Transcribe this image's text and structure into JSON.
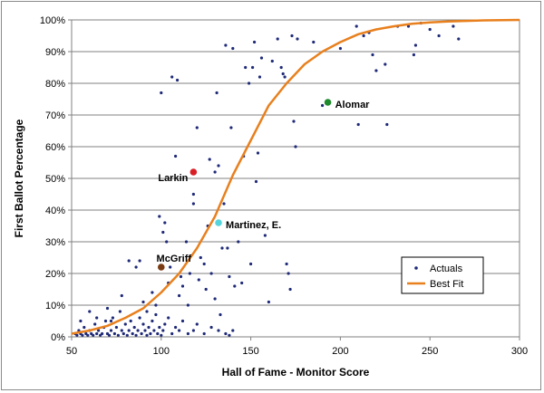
{
  "chart_data": {
    "type": "scatter",
    "xlabel": "Hall of Fame - Monitor Score",
    "ylabel": "First Ballot Percentage",
    "xlim": [
      50,
      300
    ],
    "ylim": [
      0,
      100
    ],
    "x_ticks": [
      50,
      100,
      150,
      200,
      250,
      300
    ],
    "y_ticks": [
      "0%",
      "10%",
      "20%",
      "30%",
      "40%",
      "50%",
      "60%",
      "70%",
      "80%",
      "90%",
      "100%"
    ],
    "grid": "horizontal",
    "legend_position": "bottom-right",
    "series": [
      {
        "name": "Actuals",
        "color": "#1f2a78",
        "points": [
          [
            52,
            1
          ],
          [
            53,
            0.5
          ],
          [
            54,
            2
          ],
          [
            55,
            1
          ],
          [
            56,
            0.5
          ],
          [
            57,
            3
          ],
          [
            58,
            1
          ],
          [
            59,
            0.5
          ],
          [
            60,
            2
          ],
          [
            61,
            1
          ],
          [
            62,
            0.5
          ],
          [
            63,
            4
          ],
          [
            64,
            1
          ],
          [
            65,
            2
          ],
          [
            66,
            0.5
          ],
          [
            67,
            1
          ],
          [
            68,
            3
          ],
          [
            69,
            5
          ],
          [
            70,
            1
          ],
          [
            71,
            0.5
          ],
          [
            72,
            2
          ],
          [
            73,
            6
          ],
          [
            74,
            1
          ],
          [
            75,
            3
          ],
          [
            76,
            0.5
          ],
          [
            77,
            8
          ],
          [
            78,
            2
          ],
          [
            79,
            1
          ],
          [
            80,
            4
          ],
          [
            81,
            0.5
          ],
          [
            82,
            2
          ],
          [
            83,
            5
          ],
          [
            84,
            1
          ],
          [
            85,
            3
          ],
          [
            86,
            0.5
          ],
          [
            87,
            2
          ],
          [
            88,
            6
          ],
          [
            89,
            1
          ],
          [
            90,
            4
          ],
          [
            91,
            2
          ],
          [
            92,
            0.5
          ],
          [
            93,
            3
          ],
          [
            94,
            1
          ],
          [
            95,
            5
          ],
          [
            96,
            2
          ],
          [
            97,
            7
          ],
          [
            98,
            1
          ],
          [
            99,
            3
          ],
          [
            100,
            0.5
          ],
          [
            101,
            2
          ],
          [
            102,
            4
          ],
          [
            104,
            6
          ],
          [
            106,
            1
          ],
          [
            108,
            3
          ],
          [
            110,
            2
          ],
          [
            112,
            5
          ],
          [
            115,
            1
          ],
          [
            118,
            2
          ],
          [
            120,
            4
          ],
          [
            124,
            1
          ],
          [
            128,
            3
          ],
          [
            132,
            2
          ],
          [
            136,
            1
          ],
          [
            138,
            0.5
          ],
          [
            140,
            2
          ],
          [
            55,
            5
          ],
          [
            60,
            8
          ],
          [
            64,
            6
          ],
          [
            70,
            9
          ],
          [
            72,
            5
          ],
          [
            78,
            13
          ],
          [
            82,
            24
          ],
          [
            86,
            22
          ],
          [
            88,
            24
          ],
          [
            90,
            11
          ],
          [
            92,
            8
          ],
          [
            95,
            14
          ],
          [
            97,
            10
          ],
          [
            99,
            38
          ],
          [
            100,
            77
          ],
          [
            101,
            33
          ],
          [
            102,
            36
          ],
          [
            103,
            30
          ],
          [
            104,
            17
          ],
          [
            105,
            22
          ],
          [
            106,
            82
          ],
          [
            108,
            57
          ],
          [
            109,
            81
          ],
          [
            110,
            13
          ],
          [
            111,
            19
          ],
          [
            112,
            16
          ],
          [
            114,
            30
          ],
          [
            115,
            10
          ],
          [
            116,
            20
          ],
          [
            118,
            45
          ],
          [
            118,
            42
          ],
          [
            120,
            66
          ],
          [
            121,
            18
          ],
          [
            122,
            25
          ],
          [
            124,
            23
          ],
          [
            125,
            15
          ],
          [
            126,
            35
          ],
          [
            127,
            56
          ],
          [
            128,
            20
          ],
          [
            130,
            52
          ],
          [
            130,
            12
          ],
          [
            131,
            77
          ],
          [
            132,
            54
          ],
          [
            133,
            7
          ],
          [
            134,
            28
          ],
          [
            135,
            42
          ],
          [
            136,
            92
          ],
          [
            137,
            28
          ],
          [
            138,
            19
          ],
          [
            139,
            66
          ],
          [
            140,
            91
          ],
          [
            141,
            16
          ],
          [
            143,
            30
          ],
          [
            145,
            17
          ],
          [
            146,
            57
          ],
          [
            147,
            85
          ],
          [
            149,
            80
          ],
          [
            150,
            23
          ],
          [
            151,
            85
          ],
          [
            152,
            93
          ],
          [
            153,
            49
          ],
          [
            154,
            58
          ],
          [
            155,
            82
          ],
          [
            156,
            88
          ],
          [
            158,
            32
          ],
          [
            160,
            11
          ],
          [
            162,
            87
          ],
          [
            165,
            94
          ],
          [
            167,
            85
          ],
          [
            168,
            83
          ],
          [
            169,
            82
          ],
          [
            170,
            23
          ],
          [
            171,
            20
          ],
          [
            172,
            15
          ],
          [
            173,
            95
          ],
          [
            174,
            68
          ],
          [
            175,
            60
          ],
          [
            176,
            94
          ],
          [
            185,
            93
          ],
          [
            190,
            73
          ],
          [
            200,
            91
          ],
          [
            209,
            98
          ],
          [
            210,
            67
          ],
          [
            213,
            95
          ],
          [
            216,
            96
          ],
          [
            218,
            89
          ],
          [
            220,
            84
          ],
          [
            225,
            86
          ],
          [
            226,
            67
          ],
          [
            232,
            98
          ],
          [
            238,
            98
          ],
          [
            241,
            89
          ],
          [
            242,
            92
          ],
          [
            245,
            99
          ],
          [
            250,
            97
          ],
          [
            255,
            95
          ],
          [
            263,
            98
          ],
          [
            266,
            94
          ]
        ]
      },
      {
        "name": "Best Fit",
        "color": "#e8801e",
        "x": [
          50,
          60,
          70,
          80,
          90,
          100,
          110,
          120,
          130,
          140,
          150,
          160,
          170,
          180,
          190,
          200,
          210,
          220,
          230,
          240,
          250,
          260,
          270,
          280,
          290,
          300
        ],
        "y": [
          1,
          2,
          3.5,
          6,
          9,
          14,
          20,
          28,
          38,
          51,
          62,
          73,
          80,
          86,
          90,
          93,
          95.5,
          97,
          98,
          98.8,
          99.2,
          99.5,
          99.7,
          99.85,
          99.9,
          100
        ]
      }
    ],
    "annotations": [
      {
        "label": "Alomar",
        "x": 193,
        "y": 74,
        "color": "#1f8a2e"
      },
      {
        "label": "Larkin",
        "x": 118,
        "y": 52,
        "color": "#d81f26"
      },
      {
        "label": "Martinez, E.",
        "x": 132,
        "y": 36,
        "color": "#56d4dc"
      },
      {
        "label": "McGriff",
        "x": 100,
        "y": 22,
        "color": "#7b3b12"
      }
    ]
  }
}
